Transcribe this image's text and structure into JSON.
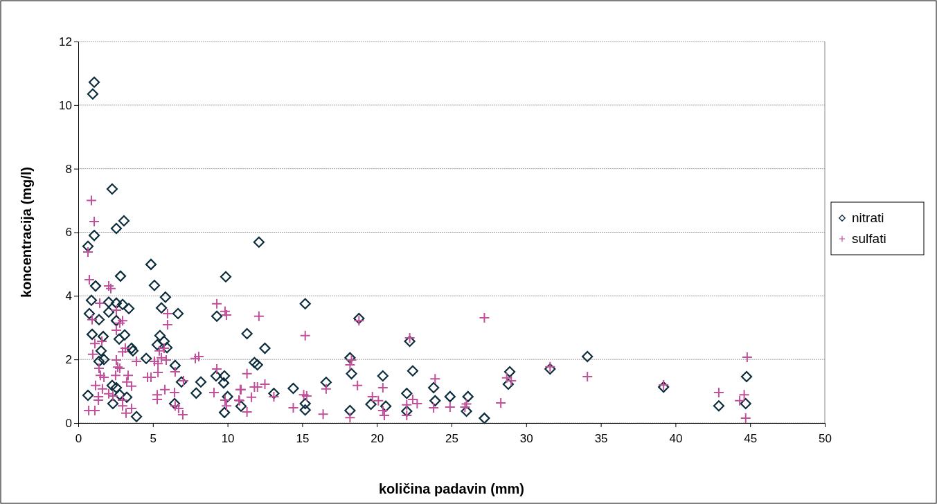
{
  "chart_data": {
    "type": "scatter",
    "xlabel": "količina padavin (mm)",
    "ylabel": "koncentracija (mg/l)",
    "xlim": [
      0,
      50
    ],
    "xticks": [
      0,
      5,
      10,
      15,
      20,
      25,
      30,
      35,
      40,
      45,
      50
    ],
    "ylim": [
      0,
      12
    ],
    "yticks": [
      0,
      2,
      4,
      6,
      8,
      10,
      12
    ],
    "grid": "y",
    "legend": "right",
    "series": [
      {
        "name": "nitrati",
        "color": "#0d2d3d",
        "marker": "diamond",
        "x": [
          1.07,
          0.97,
          2.27,
          2.55,
          3.06,
          1.07,
          0.65,
          12.1,
          4.87,
          2.83,
          5.1,
          1.16,
          9.88,
          5.84,
          0.88,
          2.04,
          2.55,
          2.97,
          3.39,
          5.57,
          6.68,
          9.28,
          0.74,
          2.04,
          1.39,
          2.55,
          15.2,
          11.3,
          0.93,
          1.67,
          3.11,
          2.74,
          5.47,
          5.75,
          5.29,
          3.57,
          3.66,
          1.53,
          5.94,
          12.5,
          1.72,
          1.39,
          4.55,
          6.49,
          11.8,
          12.0,
          6.91,
          8.21,
          9.23,
          9.79,
          9.74,
          2.27,
          2.55,
          7.9,
          0.65,
          2.78,
          3.25,
          6.45,
          2.32,
          10.0,
          9.79,
          3.9,
          18.3,
          20.4,
          22.4,
          23.8,
          14.4,
          16.6,
          15.2,
          15.2,
          18.2,
          19.6,
          20.6,
          22.0,
          22.0,
          10.9,
          13.1,
          23.9,
          18.2,
          18.8,
          22.2,
          24.9,
          26.1,
          27.2,
          28.9,
          28.8,
          26.0,
          31.6,
          34.1,
          39.2,
          42.9,
          44.76,
          44.7
        ],
        "values": [
          10.72,
          10.35,
          7.36,
          6.12,
          6.36,
          5.9,
          5.56,
          5.69,
          4.99,
          4.62,
          4.33,
          4.31,
          4.6,
          3.96,
          3.86,
          3.8,
          3.77,
          3.73,
          3.6,
          3.62,
          3.44,
          3.36,
          3.44,
          3.49,
          3.25,
          3.22,
          3.75,
          2.81,
          2.79,
          2.72,
          2.77,
          2.64,
          2.75,
          2.57,
          2.46,
          2.35,
          2.27,
          2.27,
          2.37,
          2.35,
          2.0,
          1.94,
          2.03,
          1.81,
          1.9,
          1.83,
          1.29,
          1.29,
          1.48,
          1.48,
          1.26,
          1.18,
          1.11,
          0.94,
          0.87,
          0.89,
          0.81,
          0.61,
          0.61,
          0.83,
          0.33,
          0.2,
          1.55,
          1.48,
          1.64,
          1.11,
          1.09,
          1.28,
          0.61,
          0.41,
          0.39,
          0.59,
          0.53,
          0.93,
          0.37,
          0.53,
          0.93,
          0.7,
          2.05,
          3.29,
          2.57,
          0.83,
          0.83,
          0.15,
          1.61,
          1.22,
          0.37,
          1.7,
          2.09,
          1.13,
          0.54,
          1.46,
          0.61
        ]
      },
      {
        "name": "sulfati",
        "color": "#c0509a",
        "marker": "cross",
        "x": [
          0.88,
          1.07,
          0.65,
          0.74,
          2.04,
          2.18,
          1.44,
          2.55,
          9.28,
          9.83,
          9.93,
          5.98,
          5.98,
          0.93,
          2.97,
          2.78,
          2.55,
          1.11,
          1.58,
          3.15,
          2.97,
          0.97,
          3.9,
          2.55,
          2.64,
          2.78,
          1.39,
          2.5,
          3.34,
          1.48,
          1.72,
          3.25,
          1.16,
          3.57,
          1.62,
          2.04,
          2.32,
          1.35,
          1.35,
          2.97,
          2.97,
          3.2,
          3.57,
          0.7,
          1.11,
          4.64,
          4.87,
          5.1,
          5.57,
          5.75,
          5.43,
          5.34,
          5.89,
          6.49,
          7.05,
          5.34,
          5.29,
          5.8,
          6.45,
          6.72,
          6.49,
          7.0,
          5.29,
          8.07,
          7.84,
          9.28,
          9.09,
          9.83,
          9.93,
          10.9,
          10.76,
          12.1,
          15.2,
          18.8,
          22.2,
          11.3,
          10.85,
          11.8,
          12.0,
          12.5,
          11.6,
          10.8,
          11.3,
          13.1,
          14.4,
          15.1,
          15.3,
          16.6,
          16.4,
          18.2,
          18.3,
          18.2,
          18.7,
          19.7,
          20.1,
          20.4,
          20.4,
          20.5,
          22.0,
          22.0,
          22.7,
          22.4,
          23.9,
          23.8,
          24.9,
          26.0,
          25.9,
          27.2,
          28.3,
          28.7,
          29.0,
          31.6,
          34.1,
          39.2,
          42.9,
          44.3,
          44.6,
          44.8,
          44.7
        ],
        "values": [
          7.0,
          6.34,
          5.38,
          4.51,
          4.31,
          4.23,
          3.77,
          3.55,
          3.75,
          3.51,
          3.4,
          3.44,
          3.09,
          3.25,
          3.22,
          3.14,
          2.92,
          2.5,
          2.57,
          2.35,
          2.24,
          2.16,
          1.94,
          1.98,
          1.76,
          1.72,
          1.72,
          1.5,
          1.5,
          1.5,
          1.44,
          1.29,
          1.18,
          1.16,
          1.07,
          0.92,
          0.85,
          0.83,
          0.72,
          0.72,
          0.54,
          0.31,
          0.46,
          0.39,
          0.39,
          1.44,
          1.44,
          1.94,
          2.05,
          2.35,
          2.27,
          1.87,
          1.98,
          1.61,
          1.33,
          1.59,
          0.89,
          1.05,
          0.96,
          0.46,
          0.54,
          0.26,
          0.74,
          2.09,
          2.03,
          1.7,
          0.96,
          0.72,
          0.54,
          1.05,
          0.72,
          3.36,
          2.75,
          3.22,
          2.68,
          1.55,
          1.05,
          1.13,
          1.13,
          1.22,
          0.81,
          0.7,
          0.35,
          0.83,
          0.48,
          0.89,
          0.85,
          1.07,
          0.28,
          0.17,
          1.98,
          1.83,
          1.18,
          0.83,
          0.7,
          1.11,
          0.39,
          0.24,
          0.57,
          0.24,
          0.61,
          0.74,
          1.39,
          0.48,
          0.5,
          0.6,
          0.5,
          3.31,
          0.63,
          1.42,
          1.33,
          1.77,
          1.46,
          1.2,
          0.96,
          0.7,
          0.89,
          2.07,
          0.15
        ]
      }
    ]
  }
}
